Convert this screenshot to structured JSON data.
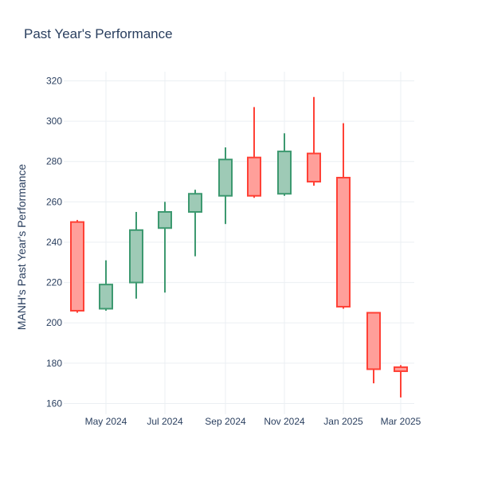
{
  "chart_data": {
    "type": "candlestick",
    "title": "Past Year's Performance",
    "xlabel": "",
    "ylabel": "MANH's Past Year's Performance",
    "ylim": [
      156,
      322
    ],
    "y_ticks": [
      160,
      180,
      200,
      220,
      240,
      260,
      280,
      300,
      320
    ],
    "x_ticks": [
      "May 2024",
      "Jul 2024",
      "Sep 2024",
      "Nov 2024",
      "Jan 2025",
      "Mar 2025"
    ],
    "grid": true,
    "legend": "none",
    "colors": {
      "increasing_line": "#3d9970",
      "increasing_fill": "#9ecab6",
      "decreasing_line": "#ff4136",
      "decreasing_fill": "#ff9f9a"
    },
    "candles": [
      {
        "period": "Apr 2024",
        "open": 250,
        "high": 251,
        "low": 205,
        "close": 206
      },
      {
        "period": "May 2024",
        "open": 207,
        "high": 231,
        "low": 206,
        "close": 219
      },
      {
        "period": "Jun 2024",
        "open": 220,
        "high": 255,
        "low": 212,
        "close": 246
      },
      {
        "period": "Jul 2024",
        "open": 247,
        "high": 260,
        "low": 215,
        "close": 255
      },
      {
        "period": "Aug 2024",
        "open": 255,
        "high": 266,
        "low": 233,
        "close": 264
      },
      {
        "period": "Sep 2024",
        "open": 263,
        "high": 287,
        "low": 249,
        "close": 281
      },
      {
        "period": "Oct 2024",
        "open": 282,
        "high": 307,
        "low": 262,
        "close": 263
      },
      {
        "period": "Nov 2024",
        "open": 264,
        "high": 294,
        "low": 263,
        "close": 285
      },
      {
        "period": "Dec 2024",
        "open": 284,
        "high": 312,
        "low": 268,
        "close": 270
      },
      {
        "period": "Jan 2025",
        "open": 272,
        "high": 299,
        "low": 207,
        "close": 208
      },
      {
        "period": "Feb 2025",
        "open": 205,
        "high": 205,
        "low": 170,
        "close": 177
      },
      {
        "period": "Mar 2025",
        "open": 178,
        "high": 179,
        "low": 163,
        "close": 176
      }
    ]
  }
}
